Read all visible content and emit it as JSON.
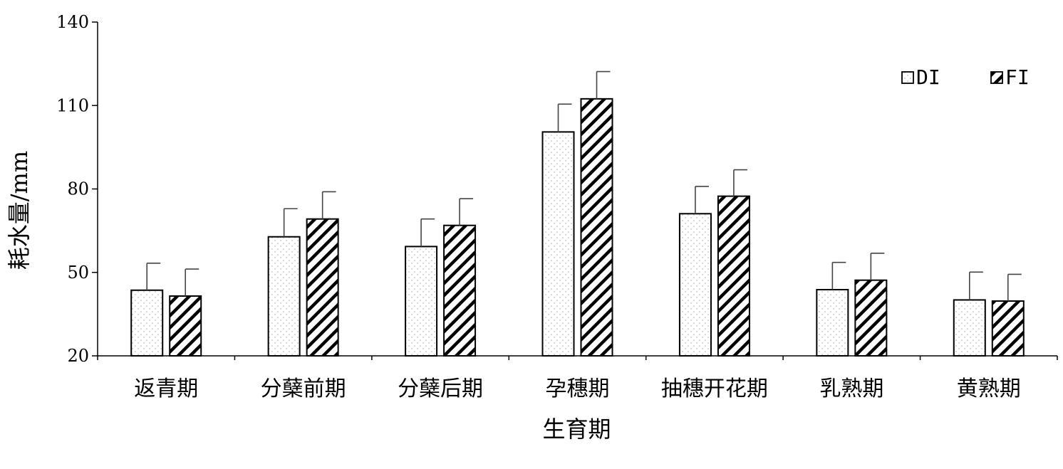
{
  "chart_data": {
    "type": "bar",
    "xlabel": "生育期",
    "ylabel": "耗水量/mm",
    "ylim": [
      20,
      140
    ],
    "yticks": [
      "20",
      "50",
      "80",
      "110",
      "140"
    ],
    "grid": false,
    "legend_position": "top-right",
    "categories": [
      "返青期",
      "分蘖前期",
      "分蘖后期",
      "孕穗期",
      "抽穗开花期",
      "乳熟期",
      "黄熟期"
    ],
    "series": [
      {
        "name": "DI",
        "pattern": "dots",
        "values": [
          43.6,
          62.8,
          59.3,
          100.5,
          71.1,
          43.8,
          40.1
        ],
        "errors": [
          9.7,
          10.1,
          9.9,
          10.0,
          9.8,
          9.8,
          10.0
        ]
      },
      {
        "name": "FI",
        "pattern": "diagonal-hatch",
        "values": [
          41.5,
          69.2,
          66.9,
          112.4,
          77.4,
          47.2,
          39.7
        ],
        "errors": [
          9.7,
          9.8,
          9.6,
          9.8,
          9.5,
          9.7,
          9.6
        ]
      }
    ],
    "colors": {
      "bar_fill": "#ffffff",
      "stroke": "#000000",
      "dot": "#b0b0b0",
      "error": "#444444"
    }
  }
}
